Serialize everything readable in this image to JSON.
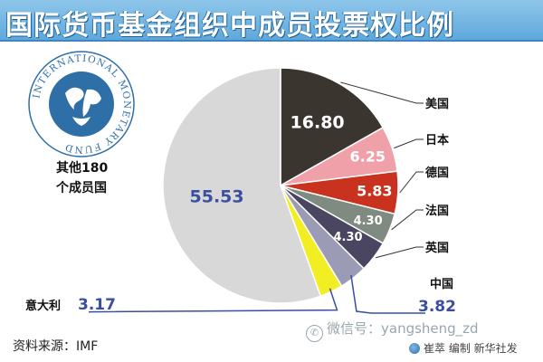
{
  "title": "国际货币基金组织中成员投票权比例",
  "source": "资料来源：IMF",
  "watermark": "微信号：yangsheng_zd",
  "credit": "崔萃 编制 新华社发",
  "logo": {
    "ring_text": "INTERNATIONAL MONETARY FUND",
    "icon": "imf-globe-logo-icon"
  },
  "colors": {
    "title_bar": "#6db3e3",
    "us": "#3b3530",
    "japan": "#f0a0a8",
    "germany": "#c8321e",
    "france": "#7f8a80",
    "uk": "#4a4560",
    "china": "#9b9bb5",
    "italy": "#f2ee24",
    "others": "#d8d8d8"
  },
  "chart_data": {
    "type": "pie",
    "start_angle_deg": 0,
    "direction": "clockwise",
    "slices": [
      {
        "key": "us",
        "label": "美国",
        "value": 16.8,
        "value_text": "16.80"
      },
      {
        "key": "japan",
        "label": "日本",
        "value": 6.25,
        "value_text": "6.25"
      },
      {
        "key": "germany",
        "label": "德国",
        "value": 5.83,
        "value_text": "5.83"
      },
      {
        "key": "france",
        "label": "法国",
        "value": 4.3,
        "value_text": "4.30"
      },
      {
        "key": "uk",
        "label": "英国",
        "value": 4.3,
        "value_text": "4.30"
      },
      {
        "key": "china",
        "label": "中国",
        "value": 3.82,
        "value_text": "3.82"
      },
      {
        "key": "italy",
        "label": "意大利",
        "value": 3.17,
        "value_text": "3.17"
      },
      {
        "key": "others",
        "label_lines": [
          "其他180",
          "个成员国"
        ],
        "value": 55.53,
        "value_text": "55.53"
      }
    ]
  }
}
